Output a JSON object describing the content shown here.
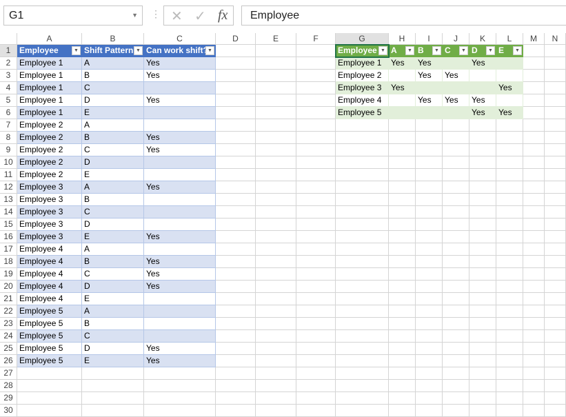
{
  "formula_bar": {
    "name_box": "G1",
    "formula": "Employee",
    "cancel_icon": "✕",
    "enter_icon": "✓",
    "fx_label": "fx"
  },
  "columns": [
    "A",
    "B",
    "C",
    "D",
    "E",
    "F",
    "G",
    "H",
    "I",
    "J",
    "K",
    "L",
    "M",
    "N"
  ],
  "rows": [
    "1",
    "2",
    "3",
    "4",
    "5",
    "6",
    "7",
    "8",
    "9",
    "10",
    "11",
    "12",
    "13",
    "14",
    "15",
    "16",
    "17",
    "18",
    "19",
    "20",
    "21",
    "22",
    "23",
    "24",
    "25",
    "26",
    "27",
    "28",
    "29",
    "30"
  ],
  "table1": {
    "headers": [
      "Employee",
      "Shift Pattern",
      "Can work shift?"
    ],
    "rows": [
      [
        "Employee 1",
        "A",
        "Yes"
      ],
      [
        "Employee 1",
        "B",
        "Yes"
      ],
      [
        "Employee 1",
        "C",
        ""
      ],
      [
        "Employee 1",
        "D",
        "Yes"
      ],
      [
        "Employee 1",
        "E",
        ""
      ],
      [
        "Employee 2",
        "A",
        ""
      ],
      [
        "Employee 2",
        "B",
        "Yes"
      ],
      [
        "Employee 2",
        "C",
        "Yes"
      ],
      [
        "Employee 2",
        "D",
        ""
      ],
      [
        "Employee 2",
        "E",
        ""
      ],
      [
        "Employee 3",
        "A",
        "Yes"
      ],
      [
        "Employee 3",
        "B",
        ""
      ],
      [
        "Employee 3",
        "C",
        ""
      ],
      [
        "Employee 3",
        "D",
        ""
      ],
      [
        "Employee 3",
        "E",
        "Yes"
      ],
      [
        "Employee 4",
        "A",
        ""
      ],
      [
        "Employee 4",
        "B",
        "Yes"
      ],
      [
        "Employee 4",
        "C",
        "Yes"
      ],
      [
        "Employee 4",
        "D",
        "Yes"
      ],
      [
        "Employee 4",
        "E",
        ""
      ],
      [
        "Employee 5",
        "A",
        ""
      ],
      [
        "Employee 5",
        "B",
        ""
      ],
      [
        "Employee 5",
        "C",
        ""
      ],
      [
        "Employee 5",
        "D",
        "Yes"
      ],
      [
        "Employee 5",
        "E",
        "Yes"
      ]
    ],
    "header_color": "#4472c4",
    "band_color": "#d9e1f2"
  },
  "table2": {
    "headers": [
      "Employee",
      "A",
      "B",
      "C",
      "D",
      "E"
    ],
    "rows": [
      [
        "Employee 1",
        "Yes",
        "Yes",
        "",
        "Yes",
        ""
      ],
      [
        "Employee 2",
        "",
        "Yes",
        "Yes",
        "",
        ""
      ],
      [
        "Employee 3",
        "Yes",
        "",
        "",
        "",
        "Yes"
      ],
      [
        "Employee 4",
        "",
        "Yes",
        "Yes",
        "Yes",
        ""
      ],
      [
        "Employee 5",
        "",
        "",
        "",
        "Yes",
        "Yes"
      ]
    ],
    "header_color": "#70ad47",
    "band_color": "#e2efda"
  }
}
